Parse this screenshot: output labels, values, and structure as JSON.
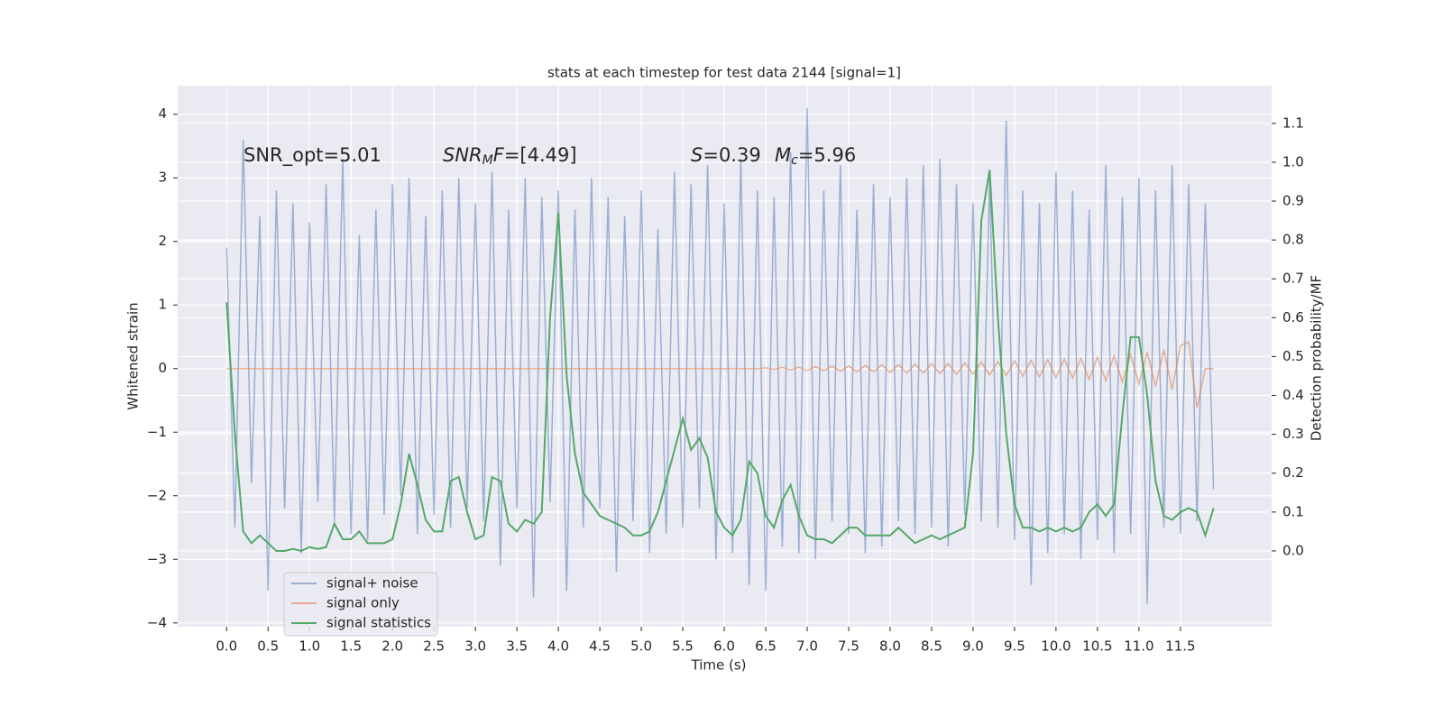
{
  "chart_data": {
    "type": "line",
    "title": "stats at each timestep for test data 2144 [signal=1]",
    "xlabel": "Time (s)",
    "ylabel": "Whitened strain",
    "y2label": "Detection probability/MF",
    "annotations": [
      [
        {
          "text": "SNR_opt=5.01",
          "italic": false
        }
      ],
      [
        {
          "text": "SNR",
          "italic": true
        },
        {
          "text": "M",
          "italic": true,
          "sub": true
        },
        {
          "text": "F",
          "italic": true
        },
        {
          "text": "=[4.49]",
          "italic": false
        }
      ],
      [
        {
          "text": "S",
          "italic": true
        },
        {
          "text": "=0.39",
          "italic": false
        }
      ],
      [
        {
          "text": "M",
          "italic": true
        },
        {
          "text": "c",
          "italic": true,
          "sub": true
        },
        {
          "text": "=5.96",
          "italic": false
        }
      ]
    ],
    "x": [
      0,
      0.1,
      0.2,
      0.3,
      0.4,
      0.5,
      0.6,
      0.7,
      0.8,
      0.9,
      1,
      1.1,
      1.2,
      1.3,
      1.4,
      1.5,
      1.6,
      1.7,
      1.8,
      1.9,
      2,
      2.1,
      2.2,
      2.3,
      2.4,
      2.5,
      2.6,
      2.7,
      2.8,
      2.9,
      3,
      3.1,
      3.2,
      3.3,
      3.4,
      3.5,
      3.6,
      3.7,
      3.8,
      3.9,
      4,
      4.1,
      4.2,
      4.3,
      4.4,
      4.5,
      4.6,
      4.7,
      4.8,
      4.9,
      5,
      5.1,
      5.2,
      5.3,
      5.4,
      5.5,
      5.6,
      5.7,
      5.8,
      5.9,
      6,
      6.1,
      6.2,
      6.3,
      6.4,
      6.5,
      6.6,
      6.7,
      6.8,
      6.9,
      7,
      7.1,
      7.2,
      7.3,
      7.4,
      7.5,
      7.6,
      7.7,
      7.8,
      7.9,
      8,
      8.1,
      8.2,
      8.3,
      8.4,
      8.5,
      8.6,
      8.7,
      8.8,
      8.9,
      9,
      9.1,
      9.2,
      9.3,
      9.4,
      9.5,
      9.6,
      9.7,
      9.8,
      9.9,
      10,
      10.1,
      10.2,
      10.3,
      10.4,
      10.5,
      10.6,
      10.7,
      10.8,
      10.9,
      11,
      11.1,
      11.2,
      11.3,
      11.4,
      11.5,
      11.6,
      11.7,
      11.8,
      11.9
    ],
    "series": [
      {
        "name": "signal+ noise",
        "color": "#4c72b0",
        "opacity": 0.5,
        "axis": "y",
        "values": [
          1.9,
          -2.5,
          3.6,
          -1.8,
          2.4,
          -3.5,
          2.8,
          -2.2,
          2.6,
          -2.9,
          2.3,
          -2.1,
          2.9,
          -2.4,
          3.3,
          -2.6,
          2.1,
          -2.7,
          2.5,
          -2.3,
          2.9,
          -2.0,
          3.0,
          -2.6,
          2.4,
          -2.3,
          2.8,
          -2.5,
          3.0,
          -2.2,
          2.6,
          -2.4,
          3.1,
          -3.1,
          2.5,
          -2.2,
          3.0,
          -3.6,
          2.7,
          -2.1,
          2.8,
          -3.5,
          2.5,
          -2.5,
          3.0,
          -2.2,
          2.7,
          -3.2,
          2.4,
          -2.4,
          2.8,
          -2.9,
          2.2,
          -2.6,
          3.1,
          -2.5,
          2.9,
          -2.2,
          3.2,
          -3.0,
          2.6,
          -2.9,
          3.3,
          -3.4,
          2.8,
          -3.5,
          2.7,
          -2.8,
          3.4,
          -2.9,
          4.1,
          -3.0,
          2.8,
          -2.4,
          3.2,
          -2.6,
          2.5,
          -2.9,
          2.9,
          -2.8,
          2.7,
          -2.4,
          3.0,
          -2.6,
          3.2,
          -2.5,
          3.3,
          -2.8,
          2.9,
          -2.3,
          2.6,
          -2.4,
          3.0,
          -2.5,
          3.9,
          -2.7,
          2.8,
          -3.4,
          2.6,
          -2.9,
          3.1,
          -2.6,
          2.8,
          -3.0,
          2.5,
          -2.7,
          3.2,
          -2.9,
          2.7,
          -2.6,
          3.0,
          -3.7,
          2.8,
          -2.5,
          3.2,
          -2.6,
          2.9,
          -2.4,
          2.6,
          -1.9
        ]
      },
      {
        "name": "signal only",
        "color": "#dd8452",
        "opacity": 0.6,
        "axis": "y",
        "values": [
          0,
          0,
          0,
          0,
          0,
          0,
          0,
          0,
          0,
          0,
          0,
          0,
          0,
          0,
          0,
          0,
          0,
          0,
          0,
          0,
          0,
          0,
          0,
          0,
          0,
          0,
          0,
          0,
          0,
          0,
          0,
          0,
          0,
          0,
          0,
          0,
          0,
          0,
          0,
          0,
          0,
          0,
          0,
          0,
          0,
          0,
          0,
          0,
          0,
          0,
          0,
          0,
          0,
          0,
          0,
          0,
          0,
          0,
          0,
          0,
          0,
          0,
          0,
          0,
          0,
          0.01,
          -0.01,
          0.02,
          -0.02,
          0.02,
          -0.03,
          0.03,
          -0.03,
          0.04,
          -0.04,
          0.04,
          -0.05,
          0.05,
          -0.05,
          0.06,
          -0.06,
          0.06,
          -0.07,
          0.07,
          -0.07,
          0.08,
          -0.08,
          0.08,
          -0.09,
          0.09,
          -0.09,
          0.1,
          -0.1,
          0.11,
          -0.11,
          0.12,
          -0.12,
          0.13,
          -0.13,
          0.14,
          -0.14,
          0.15,
          -0.15,
          0.16,
          -0.17,
          0.18,
          -0.19,
          0.2,
          -0.21,
          0.22,
          -0.24,
          0.26,
          -0.28,
          0.3,
          -0.33,
          0.36,
          0.42,
          -0.62,
          0,
          0
        ]
      },
      {
        "name": "signal statistics",
        "color": "#55a868",
        "opacity": 1,
        "axis": "y2",
        "values": [
          0.64,
          0.3,
          0.05,
          0.02,
          0.04,
          0.02,
          0.0,
          0.0,
          0.005,
          0.0,
          0.01,
          0.005,
          0.01,
          0.07,
          0.03,
          0.03,
          0.05,
          0.02,
          0.02,
          0.02,
          0.03,
          0.12,
          0.25,
          0.17,
          0.08,
          0.05,
          0.05,
          0.18,
          0.19,
          0.1,
          0.03,
          0.04,
          0.19,
          0.18,
          0.07,
          0.05,
          0.08,
          0.07,
          0.1,
          0.6,
          0.87,
          0.45,
          0.25,
          0.15,
          0.12,
          0.09,
          0.08,
          0.07,
          0.06,
          0.04,
          0.04,
          0.05,
          0.1,
          0.18,
          0.26,
          0.34,
          0.26,
          0.29,
          0.24,
          0.1,
          0.06,
          0.04,
          0.08,
          0.23,
          0.2,
          0.09,
          0.06,
          0.13,
          0.17,
          0.09,
          0.04,
          0.03,
          0.03,
          0.02,
          0.04,
          0.06,
          0.06,
          0.04,
          0.04,
          0.04,
          0.04,
          0.06,
          0.04,
          0.02,
          0.03,
          0.04,
          0.03,
          0.04,
          0.05,
          0.06,
          0.25,
          0.85,
          0.98,
          0.6,
          0.3,
          0.12,
          0.06,
          0.06,
          0.05,
          0.06,
          0.05,
          0.06,
          0.05,
          0.06,
          0.1,
          0.12,
          0.09,
          0.12,
          0.35,
          0.55,
          0.55,
          0.4,
          0.18,
          0.09,
          0.08,
          0.1,
          0.11,
          0.1,
          0.04,
          0.11
        ]
      }
    ],
    "xlim": [
      -0.59,
      12.6
    ],
    "ylim": [
      -4.06,
      4.45
    ],
    "y2lim": [
      -0.195,
      1.197
    ],
    "xticks": [
      {
        "value": 0,
        "label": "0.0"
      },
      {
        "value": 0.5,
        "label": "0.5"
      },
      {
        "value": 1,
        "label": "1.0"
      },
      {
        "value": 1.5,
        "label": "1.5"
      },
      {
        "value": 2,
        "label": "2.0"
      },
      {
        "value": 2.5,
        "label": "2.5"
      },
      {
        "value": 3,
        "label": "3.0"
      },
      {
        "value": 3.5,
        "label": "3.5"
      },
      {
        "value": 4,
        "label": "4.0"
      },
      {
        "value": 4.5,
        "label": "4.5"
      },
      {
        "value": 5,
        "label": "5.0"
      },
      {
        "value": 5.5,
        "label": "5.5"
      },
      {
        "value": 6,
        "label": "6.0"
      },
      {
        "value": 6.5,
        "label": "6.5"
      },
      {
        "value": 7,
        "label": "7.0"
      },
      {
        "value": 7.5,
        "label": "7.5"
      },
      {
        "value": 8,
        "label": "8.0"
      },
      {
        "value": 8.5,
        "label": "8.5"
      },
      {
        "value": 9,
        "label": "9.0"
      },
      {
        "value": 9.5,
        "label": "9.5"
      },
      {
        "value": 10,
        "label": "10.0"
      },
      {
        "value": 10.5,
        "label": "10.5"
      },
      {
        "value": 11,
        "label": "11.0"
      },
      {
        "value": 11.5,
        "label": "11.5"
      }
    ],
    "yticks": [
      {
        "value": -4,
        "label": "−4"
      },
      {
        "value": -3,
        "label": "−3"
      },
      {
        "value": -2,
        "label": "−2"
      },
      {
        "value": -1,
        "label": "−1"
      },
      0,
      1,
      2,
      3,
      4
    ],
    "y2ticks": [
      {
        "value": 0,
        "label": "0.0"
      },
      {
        "value": 0.1,
        "label": "0.1"
      },
      {
        "value": 0.2,
        "label": "0.2"
      },
      {
        "value": 0.3,
        "label": "0.3"
      },
      {
        "value": 0.4,
        "label": "0.4"
      },
      {
        "value": 0.5,
        "label": "0.5"
      },
      {
        "value": 0.6,
        "label": "0.6"
      },
      {
        "value": 0.7,
        "label": "0.7"
      },
      {
        "value": 0.8,
        "label": "0.8"
      },
      {
        "value": 0.9,
        "label": "0.9"
      },
      {
        "value": 1,
        "label": "1.0"
      },
      {
        "value": 1.1,
        "label": "1.1"
      }
    ],
    "grid": true,
    "legend": "lower left"
  }
}
